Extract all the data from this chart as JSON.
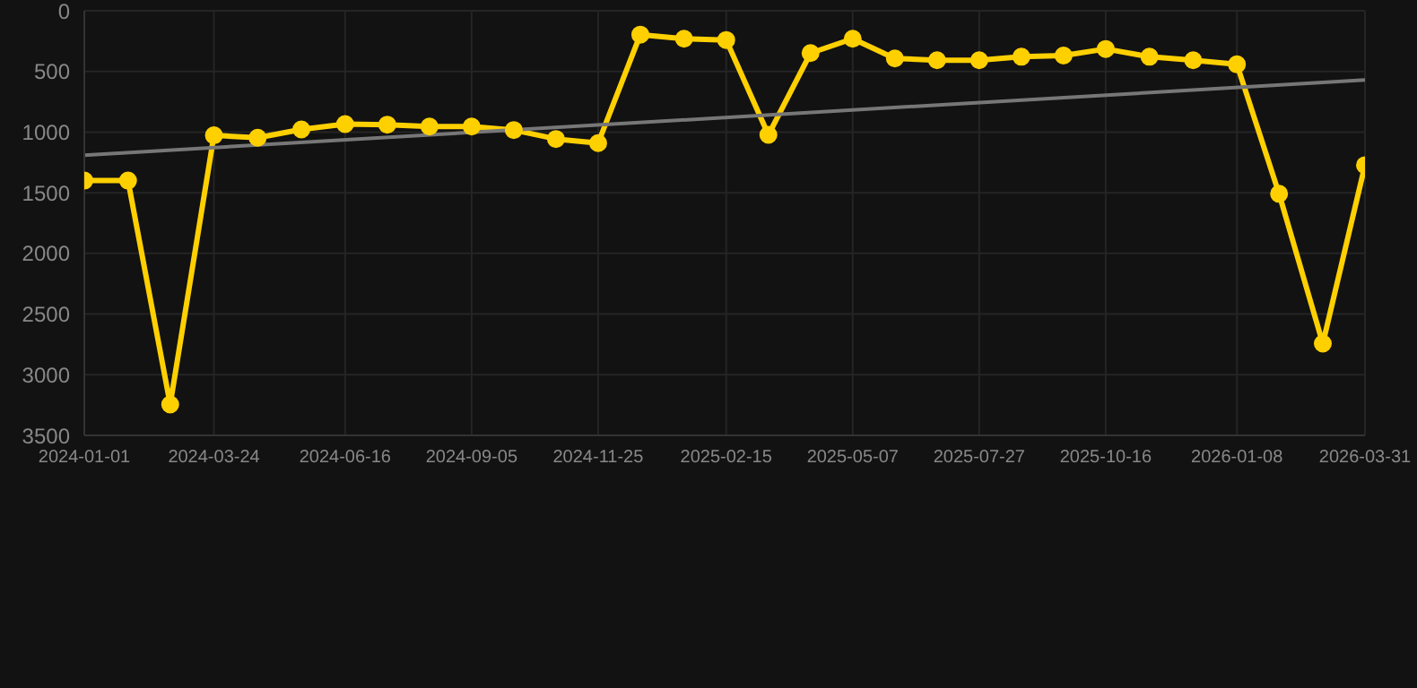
{
  "chart_data": {
    "type": "line",
    "x": [
      "2024-01-01",
      "2024-01-29",
      "2024-02-25",
      "2024-03-24",
      "2024-04-21",
      "2024-05-19",
      "2024-06-16",
      "2024-07-13",
      "2024-08-09",
      "2024-09-05",
      "2024-10-02",
      "2024-10-29",
      "2024-11-25",
      "2024-12-22",
      "2025-01-19",
      "2025-02-15",
      "2025-03-14",
      "2025-04-10",
      "2025-05-07",
      "2025-06-03",
      "2025-06-30",
      "2025-07-27",
      "2025-08-23",
      "2025-09-19",
      "2025-10-16",
      "2025-11-13",
      "2025-12-11",
      "2026-01-08",
      "2026-02-04",
      "2026-03-04",
      "2026-03-31"
    ],
    "series": [
      {
        "color": "#ffd000",
        "values": [
          1400,
          1400,
          3245,
          1027,
          1047,
          978,
          934,
          939,
          954,
          954,
          983,
          1057,
          1091,
          197,
          231,
          241,
          1023,
          349,
          231,
          393,
          408,
          408,
          379,
          369,
          315,
          379,
          408,
          442,
          1509,
          2743,
          1273
        ]
      },
      {
        "type": "line",
        "color": "#777777",
        "marker": "none",
        "x": [
          "2024-01-01",
          "2026-03-31"
        ],
        "values": [
          1190,
          570
        ]
      }
    ],
    "xlim": [
      "2024-01-01",
      "2026-03-31"
    ],
    "xticks": [
      "2024-01-01",
      "2024-03-24",
      "2024-06-16",
      "2024-09-05",
      "2024-11-25",
      "2025-02-15",
      "2025-05-07",
      "2025-07-27",
      "2025-10-16",
      "2026-01-08",
      "2026-03-31"
    ],
    "ylim": [
      3500,
      0
    ],
    "yticks": [
      0,
      500,
      1000,
      1500,
      2000,
      2500,
      3000,
      3500
    ],
    "grid": true,
    "marker": "circle",
    "line_style": "solid",
    "legend": false
  }
}
